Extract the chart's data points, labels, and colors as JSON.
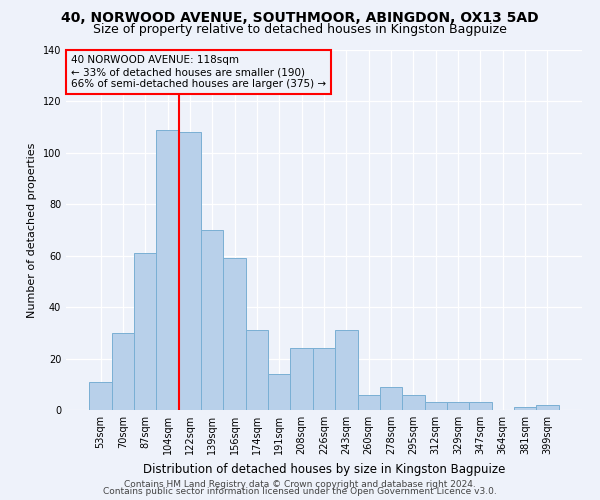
{
  "title1": "40, NORWOOD AVENUE, SOUTHMOOR, ABINGDON, OX13 5AD",
  "title2": "Size of property relative to detached houses in Kingston Bagpuize",
  "xlabel": "Distribution of detached houses by size in Kingston Bagpuize",
  "ylabel": "Number of detached properties",
  "categories": [
    "53sqm",
    "70sqm",
    "87sqm",
    "104sqm",
    "122sqm",
    "139sqm",
    "156sqm",
    "174sqm",
    "191sqm",
    "208sqm",
    "226sqm",
    "243sqm",
    "260sqm",
    "278sqm",
    "295sqm",
    "312sqm",
    "329sqm",
    "347sqm",
    "364sqm",
    "381sqm",
    "399sqm"
  ],
  "values": [
    11,
    30,
    61,
    109,
    108,
    70,
    59,
    31,
    14,
    24,
    24,
    31,
    6,
    9,
    6,
    3,
    3,
    3,
    0,
    1,
    2
  ],
  "bar_color": "#b8d0ea",
  "bar_edge_color": "#7aafd4",
  "vline_color": "red",
  "vline_x": 3.5,
  "annotation_line1": "40 NORWOOD AVENUE: 118sqm",
  "annotation_line2": "← 33% of detached houses are smaller (190)",
  "annotation_line3": "66% of semi-detached houses are larger (375) →",
  "box_edge_color": "red",
  "footer1": "Contains HM Land Registry data © Crown copyright and database right 2024.",
  "footer2": "Contains public sector information licensed under the Open Government Licence v3.0.",
  "background_color": "#eef2fa",
  "grid_color": "#ffffff",
  "ylim": [
    0,
    140
  ],
  "yticks": [
    0,
    20,
    40,
    60,
    80,
    100,
    120,
    140
  ],
  "title1_fontsize": 10,
  "title2_fontsize": 9,
  "xlabel_fontsize": 8.5,
  "ylabel_fontsize": 8,
  "tick_fontsize": 7,
  "annot_fontsize": 7.5,
  "footer_fontsize": 6.5
}
